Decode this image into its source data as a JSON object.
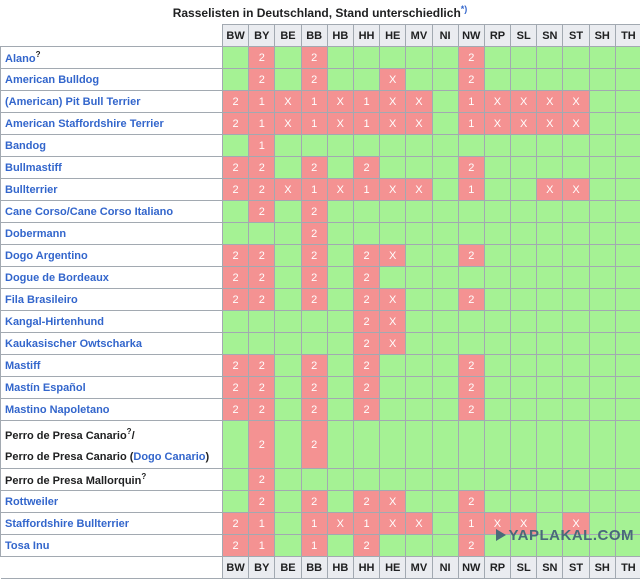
{
  "caption": {
    "title": "Rasselisten in Deutschland, Stand unterschiedlich",
    "note": "*)"
  },
  "states": [
    "BW",
    "BY",
    "BE",
    "BB",
    "HB",
    "HH",
    "HE",
    "MV",
    "NI",
    "NW",
    "RP",
    "SL",
    "SN",
    "ST",
    "SH",
    "TH"
  ],
  "legend_colors": {
    "listed": "#f49292",
    "not_listed": "#a5f294"
  },
  "rows": [
    {
      "name": "Alano",
      "sup": "?",
      "link": true,
      "cells": [
        "",
        "2",
        "",
        "2",
        "",
        "",
        "",
        "",
        "",
        "2",
        "",
        "",
        "",
        "",
        "",
        ""
      ]
    },
    {
      "name": "American Bulldog",
      "link": true,
      "cells": [
        "",
        "2",
        "",
        "2",
        "",
        "",
        "X",
        "",
        "",
        "2",
        "",
        "",
        "",
        "",
        "",
        ""
      ]
    },
    {
      "name": "(American) Pit Bull Terrier",
      "link": true,
      "cells": [
        "2",
        "1",
        "X",
        "1",
        "X",
        "1",
        "X",
        "X",
        "",
        "1",
        "X",
        "X",
        "X",
        "X",
        "",
        ""
      ]
    },
    {
      "name": "American Staffordshire Terrier",
      "link": true,
      "cells": [
        "2",
        "1",
        "X",
        "1",
        "X",
        "1",
        "X",
        "X",
        "",
        "1",
        "X",
        "X",
        "X",
        "X",
        "",
        ""
      ]
    },
    {
      "name": "Bandog",
      "link": true,
      "cells": [
        "",
        "1",
        "",
        "",
        "",
        "",
        "",
        "",
        "",
        "",
        "",
        "",
        "",
        "",
        "",
        ""
      ]
    },
    {
      "name": "Bullmastiff",
      "link": true,
      "cells": [
        "2",
        "2",
        "",
        "2",
        "",
        "2",
        "",
        "",
        "",
        "2",
        "",
        "",
        "",
        "",
        "",
        ""
      ]
    },
    {
      "name": "Bullterrier",
      "link": true,
      "cells": [
        "2",
        "2",
        "X",
        "1",
        "X",
        "1",
        "X",
        "X",
        "",
        "1",
        "",
        "",
        "X",
        "X",
        "",
        ""
      ]
    },
    {
      "name": "Cane Corso/Cane Corso Italiano",
      "link": true,
      "cells": [
        "",
        "2",
        "",
        "2",
        "",
        "",
        "",
        "",
        "",
        "",
        "",
        "",
        "",
        "",
        "",
        ""
      ]
    },
    {
      "name": "Dobermann",
      "link": true,
      "cells": [
        "",
        "",
        "",
        "2",
        "",
        "",
        "",
        "",
        "",
        "",
        "",
        "",
        "",
        "",
        "",
        ""
      ]
    },
    {
      "name": "Dogo Argentino",
      "link": true,
      "cells": [
        "2",
        "2",
        "",
        "2",
        "",
        "2",
        "X",
        "",
        "",
        "2",
        "",
        "",
        "",
        "",
        "",
        ""
      ]
    },
    {
      "name": "Dogue de Bordeaux",
      "link": true,
      "cells": [
        "2",
        "2",
        "",
        "2",
        "",
        "2",
        "",
        "",
        "",
        "",
        "",
        "",
        "",
        "",
        "",
        ""
      ]
    },
    {
      "name": "Fila Brasileiro",
      "link": true,
      "cells": [
        "2",
        "2",
        "",
        "2",
        "",
        "2",
        "X",
        "",
        "",
        "2",
        "",
        "",
        "",
        "",
        "",
        ""
      ]
    },
    {
      "name": "Kangal-Hirtenhund",
      "link": true,
      "cells": [
        "",
        "",
        "",
        "",
        "",
        "2",
        "X",
        "",
        "",
        "",
        "",
        "",
        "",
        "",
        "",
        ""
      ]
    },
    {
      "name": "Kaukasischer Owtscharka",
      "link": true,
      "cells": [
        "",
        "",
        "",
        "",
        "",
        "2",
        "X",
        "",
        "",
        "",
        "",
        "",
        "",
        "",
        "",
        ""
      ]
    },
    {
      "name": "Mastiff",
      "link": true,
      "cells": [
        "2",
        "2",
        "",
        "2",
        "",
        "2",
        "",
        "",
        "",
        "2",
        "",
        "",
        "",
        "",
        "",
        ""
      ]
    },
    {
      "name": "Mastín Español",
      "link": true,
      "cells": [
        "2",
        "2",
        "",
        "2",
        "",
        "2",
        "",
        "",
        "",
        "2",
        "",
        "",
        "",
        "",
        "",
        ""
      ]
    },
    {
      "name": "Mastino Napoletano",
      "link": true,
      "cells": [
        "2",
        "2",
        "",
        "2",
        "",
        "2",
        "",
        "",
        "",
        "2",
        "",
        "",
        "",
        "",
        "",
        ""
      ]
    },
    {
      "name": "Perro de Presa Canario",
      "sup": "?",
      "slash": "/",
      "line2_pre": "Perro de Presa Canario (",
      "line2_link": "Dogo Canario",
      "line2_post": ")",
      "tall": true,
      "link": false,
      "cells": [
        "",
        "2",
        "",
        "2",
        "",
        "",
        "",
        "",
        "",
        "",
        "",
        "",
        "",
        "",
        "",
        ""
      ]
    },
    {
      "name": "Perro de Presa Mallorquin",
      "sup": "?",
      "link": false,
      "cells": [
        "",
        "2",
        "",
        "",
        "",
        "",
        "",
        "",
        "",
        "",
        "",
        "",
        "",
        "",
        "",
        ""
      ]
    },
    {
      "name": "Rottweiler",
      "link": true,
      "cells": [
        "",
        "2",
        "",
        "2",
        "",
        "2",
        "X",
        "",
        "",
        "2",
        "",
        "",
        "",
        "",
        "",
        ""
      ]
    },
    {
      "name": "Staffordshire Bullterrier",
      "link": true,
      "cells": [
        "2",
        "1",
        "",
        "1",
        "X",
        "1",
        "X",
        "X",
        "",
        "1",
        "X",
        "X",
        "",
        "X",
        "",
        ""
      ]
    },
    {
      "name": "Tosa Inu",
      "link": true,
      "cells": [
        "2",
        "1",
        "",
        "1",
        "",
        "2",
        "",
        "",
        "",
        "2",
        "",
        "",
        "",
        "",
        "",
        ""
      ]
    }
  ],
  "watermark": "YAPLAKAL.COM"
}
